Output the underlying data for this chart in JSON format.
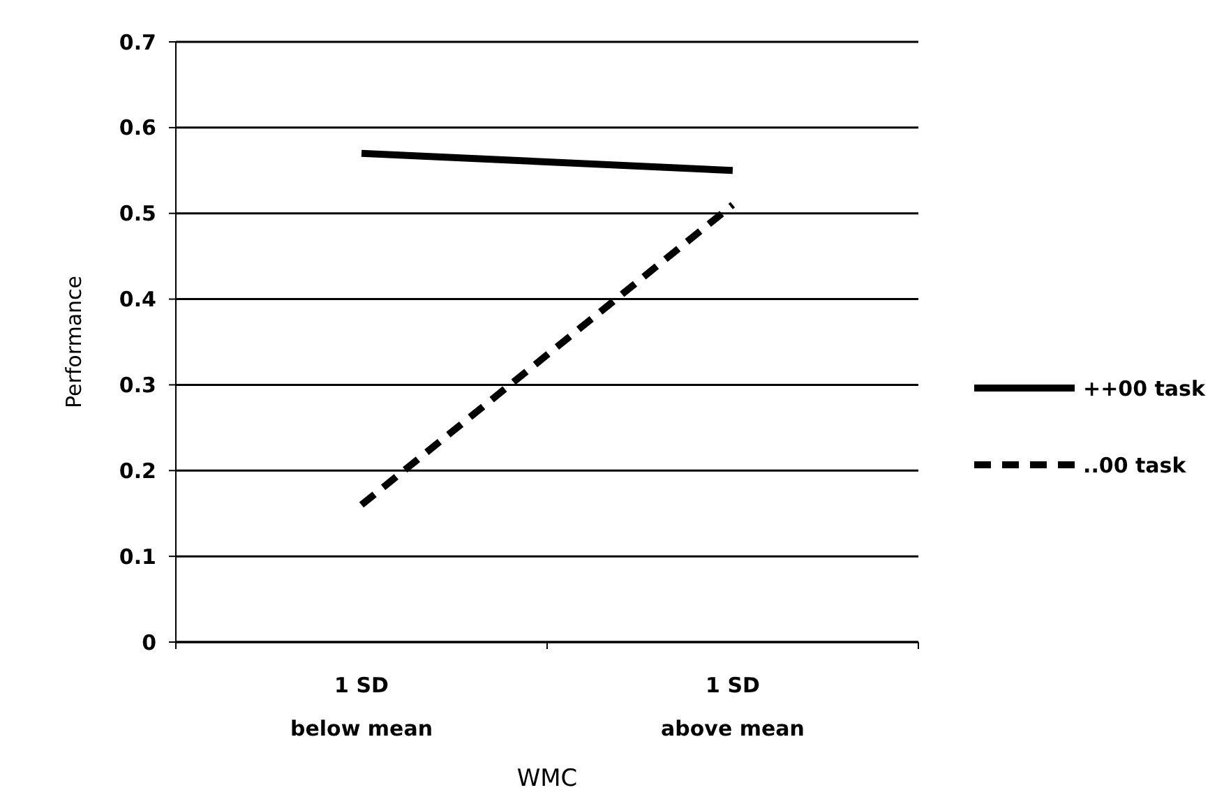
{
  "chart_data": {
    "type": "line",
    "xlabel": "WMC",
    "ylabel": "Performance",
    "categories": [
      "1 SD\nbelow mean",
      "1 SD\nabove mean"
    ],
    "series": [
      {
        "name": "++00 task",
        "color": "#000000",
        "values": [
          0.57,
          0.55
        ],
        "line_style": "solid"
      },
      {
        "name": "..00 task",
        "color": "#000000",
        "values": [
          0.16,
          0.51
        ],
        "line_style": "dashed"
      }
    ],
    "ylim": [
      0,
      0.7
    ],
    "yticks": [
      {
        "value": 0,
        "label": "0"
      },
      0.1,
      0.2,
      0.3,
      0.4,
      0.5,
      0.6,
      0.7
    ],
    "grid": "y",
    "legend": "right",
    "marker": "none"
  }
}
